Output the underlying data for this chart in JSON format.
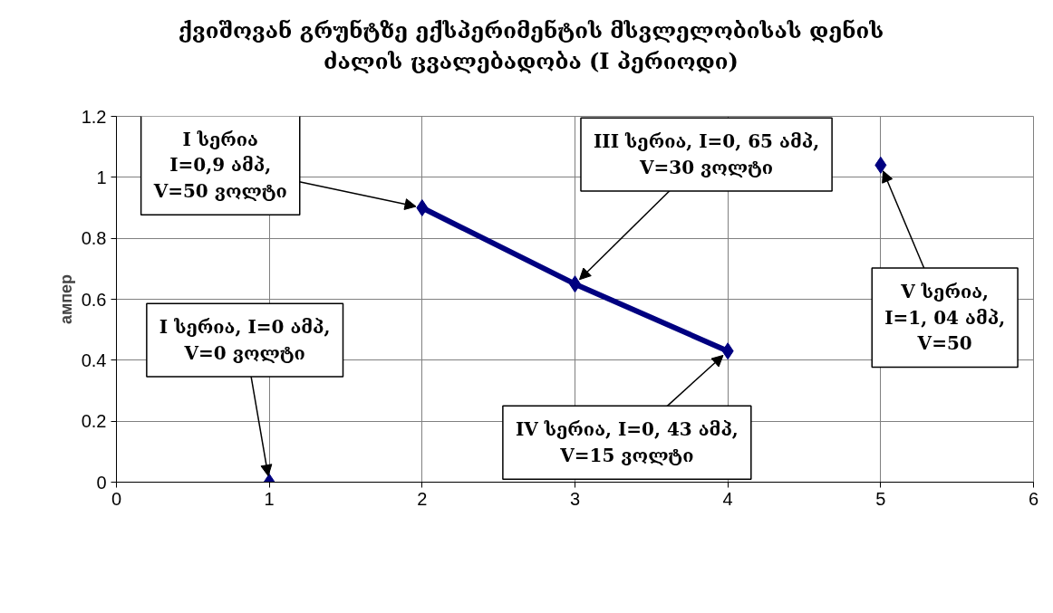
{
  "chart_data": {
    "type": "line",
    "title": "ქვიშოვან გრუნტზე ექსპერიმენტის მსვლელობისას დენის\nძალის ცვალებადობა (I პერიოდი)",
    "ylabel": "ампер",
    "xlim": [
      0,
      6
    ],
    "xticks": [
      0,
      1,
      2,
      3,
      4,
      5,
      6
    ],
    "ylim": [
      0,
      1.2
    ],
    "yticks": [
      0,
      0.2,
      0.4,
      0.6,
      0.8,
      1,
      1.2
    ],
    "grid": true,
    "marker": "diamond",
    "line_style": "solid",
    "series": [
      {
        "type": "scatter",
        "color": "#000080",
        "x": [
          1,
          5
        ],
        "values": [
          0,
          1.04
        ]
      },
      {
        "color": "#000080",
        "x": [
          2,
          3,
          4
        ],
        "values": [
          0.9,
          0.65,
          0.43
        ]
      }
    ],
    "annotations": [
      {
        "text": "I სერია\nI=0,9 ამპ,\nV=50 ვოლტი",
        "x": 2,
        "y": 0.9
      },
      {
        "text": "III სერია, I=0, 65 ამპ,\nV=30 ვოლტი",
        "x": 3,
        "y": 0.65
      },
      {
        "text": "I სერია, I=0 ამპ,\nV=0 ვოლტი",
        "x": 1,
        "y": 0
      },
      {
        "text": "V სერია,\nI=1, 04 ამპ,\nV=50",
        "x": 5,
        "y": 1.04
      },
      {
        "text": "IV სერია, I=0, 43 ამპ,\nV=15 ვოლტი",
        "x": 4,
        "y": 0.43
      }
    ]
  }
}
